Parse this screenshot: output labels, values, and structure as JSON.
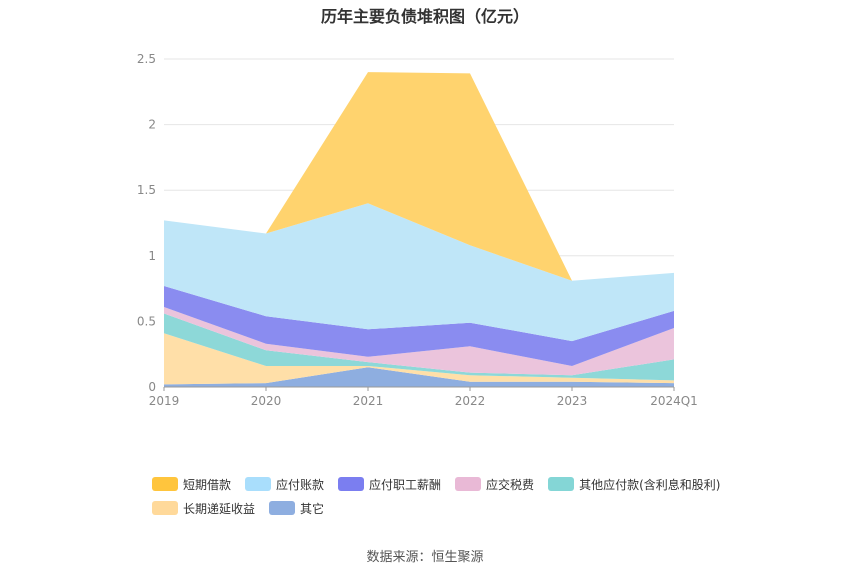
{
  "chart_data": {
    "type": "area",
    "title": "历年主要负债堆积图（亿元）",
    "x": [
      "2019",
      "2020",
      "2021",
      "2022",
      "2023",
      "2024Q1"
    ],
    "ylim": [
      0,
      2.5
    ],
    "yticks": [
      "0",
      "0.5",
      "1",
      "1.5",
      "2",
      "2.5"
    ],
    "stacked": true,
    "grid": true,
    "legend_position": "bottom",
    "series": [
      {
        "name": "其它",
        "color": "#8eaee0",
        "values": [
          0.02,
          0.03,
          0.15,
          0.04,
          0.04,
          0.03
        ]
      },
      {
        "name": "长期递延收益",
        "color": "#ffdfa8",
        "values": [
          0.39,
          0.13,
          0.01,
          0.05,
          0.03,
          0.02
        ]
      },
      {
        "name": "其他应付款(含利息和股利)",
        "color": "#8dd8d8",
        "values": [
          0.15,
          0.12,
          0.03,
          0.02,
          0.02,
          0.16
        ]
      },
      {
        "name": "应交税费",
        "color": "#ebc4dc",
        "values": [
          0.05,
          0.05,
          0.04,
          0.2,
          0.07,
          0.24
        ]
      },
      {
        "name": "应付职工薪酬",
        "color": "#8a8cf0",
        "values": [
          0.16,
          0.21,
          0.21,
          0.18,
          0.19,
          0.13
        ]
      },
      {
        "name": "应付账款",
        "color": "#bfe6f8",
        "values": [
          0.5,
          0.63,
          0.96,
          0.59,
          0.46,
          0.29
        ]
      },
      {
        "name": "短期借款",
        "color": "#ffd36e",
        "values": [
          0,
          0,
          1.0,
          1.31,
          0,
          0
        ]
      }
    ],
    "legend_rows": [
      [
        {
          "name": "短期借款",
          "color": "#ffc53d"
        },
        {
          "name": "应付账款",
          "color": "#a9defc"
        },
        {
          "name": "应付职工薪酬",
          "color": "#7b7ef0"
        },
        {
          "name": "应交税费",
          "color": "#e9b9d6"
        },
        {
          "name": "其他应付款(含利息和股利)",
          "color": "#84d6d6"
        }
      ],
      [
        {
          "name": "长期递延收益",
          "color": "#ffd99a"
        },
        {
          "name": "其它",
          "color": "#8eaee0"
        }
      ]
    ]
  },
  "source": "数据来源：恒生聚源"
}
